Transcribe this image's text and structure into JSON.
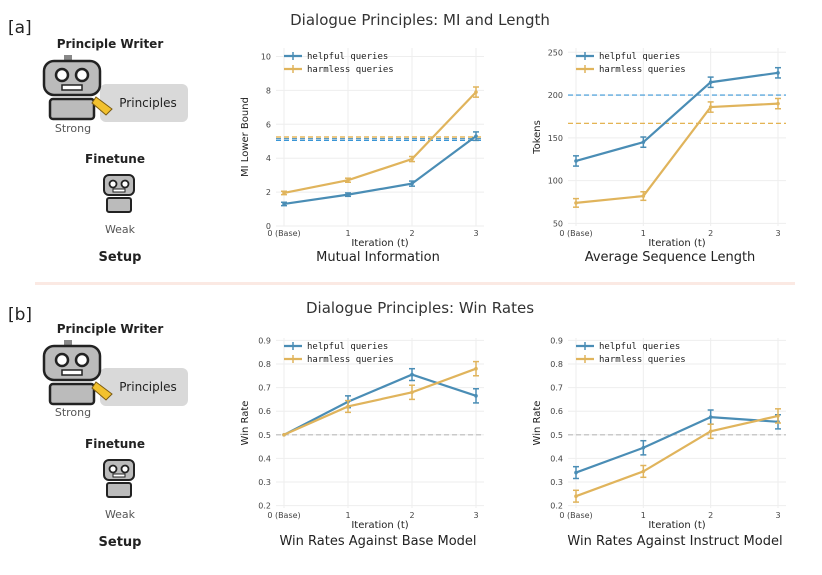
{
  "sections": [
    {
      "label": "[a]",
      "title": "Dialogue Principles: MI and Length",
      "setup": {
        "writer": "Principle Writer",
        "strong": "Strong",
        "principles": "Principles",
        "finetune": "Finetune",
        "weak": "Weak",
        "caption": "Setup"
      }
    },
    {
      "label": "[b]",
      "title": "Dialogue Principles: Win Rates",
      "setup": {
        "writer": "Principle Writer",
        "strong": "Strong",
        "principles": "Principles",
        "finetune": "Finetune",
        "weak": "Weak",
        "caption": "Setup"
      }
    }
  ],
  "colors": {
    "helpful": "#4a8db5",
    "harmless": "#e0b45c",
    "blue_ref": "#3a96d6",
    "orange_ref": "#e0a93c",
    "grid": "#eeeeee",
    "gray_ref": "#bbbbbb"
  },
  "chart_data": [
    {
      "type": "line",
      "caption": "Mutual Information",
      "xlabel": "Iteration (t)",
      "ylabel": "MI Lower Bound",
      "categories": [
        "0 (Base)",
        "1",
        "2",
        "3"
      ],
      "ylim": [
        0,
        10.5
      ],
      "yticks": [
        0,
        2,
        4,
        6,
        8,
        10
      ],
      "ytick_labels": [
        "0",
        "2",
        "4",
        "6",
        "8",
        "10"
      ],
      "series": [
        {
          "name": "helpful queries",
          "color_key": "helpful",
          "values": [
            1.3,
            1.85,
            2.5,
            5.3
          ],
          "errors": [
            0.1,
            0.1,
            0.15,
            0.25
          ]
        },
        {
          "name": "harmless queries",
          "color_key": "harmless",
          "values": [
            1.95,
            2.7,
            3.95,
            7.9
          ],
          "errors": [
            0.1,
            0.12,
            0.15,
            0.3
          ]
        }
      ],
      "ref_lines": [
        {
          "value": 5.25,
          "color_key": "orange_ref"
        },
        {
          "value": 5.05,
          "color_key": "blue_ref"
        },
        {
          "value": 5.15,
          "color_key": "helpful"
        }
      ]
    },
    {
      "type": "line",
      "caption": "Average Sequence Length",
      "xlabel": "Iteration (t)",
      "ylabel": "Tokens",
      "categories": [
        "0 (Base)",
        "1",
        "2",
        "3"
      ],
      "ylim": [
        47,
        255
      ],
      "yticks": [
        50,
        100,
        150,
        200,
        250
      ],
      "ytick_labels": [
        "50",
        "100",
        "150",
        "200",
        "250"
      ],
      "series": [
        {
          "name": "helpful queries",
          "color_key": "helpful",
          "values": [
            123,
            145,
            215,
            226
          ],
          "errors": [
            6,
            6,
            6,
            6
          ]
        },
        {
          "name": "harmless queries",
          "color_key": "harmless",
          "values": [
            74,
            82,
            186,
            190
          ],
          "errors": [
            5,
            5,
            6,
            6
          ]
        }
      ],
      "ref_lines": [
        {
          "value": 200,
          "color_key": "blue_ref"
        },
        {
          "value": 167,
          "color_key": "orange_ref"
        }
      ]
    },
    {
      "type": "line",
      "caption": "Win Rates Against Base Model",
      "xlabel": "Iteration (t)",
      "ylabel": "Win Rate",
      "categories": [
        "0 (Base)",
        "1",
        "2",
        "3"
      ],
      "ylim": [
        0.19,
        0.91
      ],
      "yticks": [
        0.2,
        0.3,
        0.4,
        0.5,
        0.6,
        0.7,
        0.8,
        0.9
      ],
      "ytick_labels": [
        "0.2",
        "0.3",
        "0.4",
        "0.5",
        "0.6",
        "0.7",
        "0.8",
        "0.9"
      ],
      "series": [
        {
          "name": "helpful queries",
          "color_key": "helpful",
          "values": [
            0.5,
            0.64,
            0.755,
            0.665
          ],
          "errors": [
            0,
            0.025,
            0.025,
            0.03
          ]
        },
        {
          "name": "harmless queries",
          "color_key": "harmless",
          "values": [
            0.5,
            0.62,
            0.68,
            0.78
          ],
          "errors": [
            0,
            0.025,
            0.03,
            0.03
          ]
        }
      ],
      "ref_lines": [
        {
          "value": 0.5,
          "color_key": "gray_ref"
        }
      ]
    },
    {
      "type": "line",
      "caption": "Win Rates Against Instruct Model",
      "xlabel": "Iteration (t)",
      "ylabel": "Win Rate",
      "categories": [
        "0 (Base)",
        "1",
        "2",
        "3"
      ],
      "ylim": [
        0.19,
        0.91
      ],
      "yticks": [
        0.2,
        0.3,
        0.4,
        0.5,
        0.6,
        0.7,
        0.8,
        0.9
      ],
      "ytick_labels": [
        "0.2",
        "0.3",
        "0.4",
        "0.5",
        "0.6",
        "0.7",
        "0.8",
        "0.9"
      ],
      "series": [
        {
          "name": "helpful queries",
          "color_key": "helpful",
          "values": [
            0.34,
            0.445,
            0.575,
            0.555
          ],
          "errors": [
            0.025,
            0.03,
            0.03,
            0.03
          ]
        },
        {
          "name": "harmless queries",
          "color_key": "harmless",
          "values": [
            0.24,
            0.345,
            0.515,
            0.58
          ],
          "errors": [
            0.025,
            0.025,
            0.03,
            0.03
          ]
        }
      ],
      "ref_lines": [
        {
          "value": 0.5,
          "color_key": "gray_ref"
        }
      ]
    }
  ]
}
